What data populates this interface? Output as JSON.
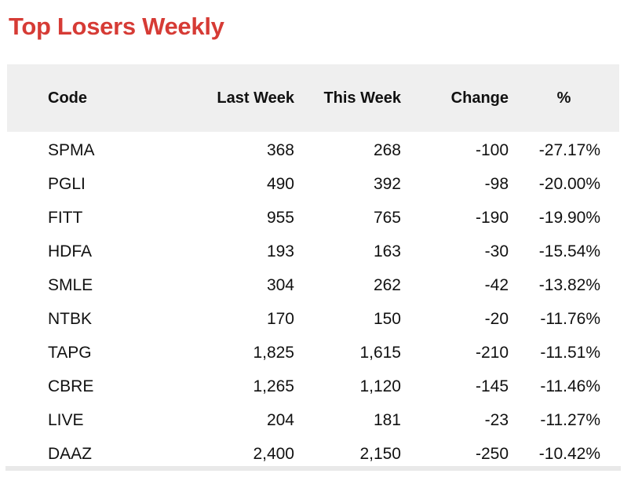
{
  "title": "Top Losers Weekly",
  "table": {
    "headers": {
      "code": "Code",
      "last_week": "Last Week",
      "this_week": "This Week",
      "change": "Change",
      "pct": "%"
    },
    "rows": [
      {
        "code": "SPMA",
        "last_week": "368",
        "this_week": "268",
        "change": "-100",
        "pct": "-27.17%"
      },
      {
        "code": "PGLI",
        "last_week": "490",
        "this_week": "392",
        "change": "-98",
        "pct": "-20.00%"
      },
      {
        "code": "FITT",
        "last_week": "955",
        "this_week": "765",
        "change": "-190",
        "pct": "-19.90%"
      },
      {
        "code": "HDFA",
        "last_week": "193",
        "this_week": "163",
        "change": "-30",
        "pct": "-15.54%"
      },
      {
        "code": "SMLE",
        "last_week": "304",
        "this_week": "262",
        "change": "-42",
        "pct": "-13.82%"
      },
      {
        "code": "NTBK",
        "last_week": "170",
        "this_week": "150",
        "change": "-20",
        "pct": "-11.76%"
      },
      {
        "code": "TAPG",
        "last_week": "1,825",
        "this_week": "1,615",
        "change": "-210",
        "pct": "-11.51%"
      },
      {
        "code": "CBRE",
        "last_week": "1,265",
        "this_week": "1,120",
        "change": "-145",
        "pct": "-11.46%"
      },
      {
        "code": "LIVE",
        "last_week": "204",
        "this_week": "181",
        "change": "-23",
        "pct": "-11.27%"
      },
      {
        "code": "DAAZ",
        "last_week": "2,400",
        "this_week": "2,150",
        "change": "-250",
        "pct": "-10.42%"
      }
    ]
  },
  "colors": {
    "title": "#d63b35",
    "header_bg": "#efefef",
    "text": "#111111",
    "bottom_rule": "#e9e9e9"
  }
}
